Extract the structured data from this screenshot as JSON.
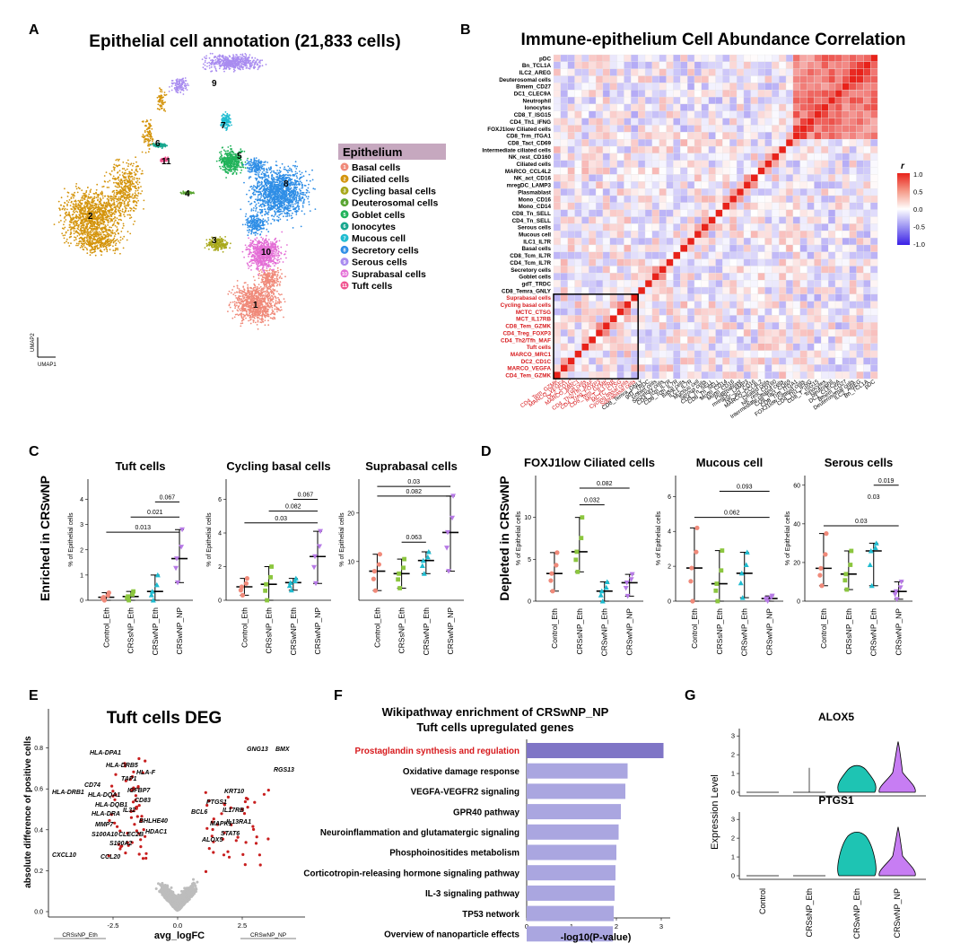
{
  "panels": {
    "A": "A",
    "B": "B",
    "C": "C",
    "D": "D",
    "E": "E",
    "F": "F",
    "G": "G"
  },
  "panel_a": {
    "title": "Epithelial cell annotation (21,833 cells)",
    "axis_x": "UMAP1",
    "axis_y": "UMAP2",
    "legend_title": "Epithelium",
    "clusters": [
      {
        "id": "1",
        "name": "Basal cells",
        "color": "#f08a7a"
      },
      {
        "id": "2",
        "name": "Ciliated cells",
        "color": "#d4940c"
      },
      {
        "id": "3",
        "name": "Cycling basal cells",
        "color": "#a8a81a"
      },
      {
        "id": "4",
        "name": "Deuterosomal cells",
        "color": "#5aa532"
      },
      {
        "id": "5",
        "name": "Goblet cells",
        "color": "#21b35a"
      },
      {
        "id": "6",
        "name": "Ionocytes",
        "color": "#18a78f"
      },
      {
        "id": "7",
        "name": "Mucous cell",
        "color": "#1fbcd0"
      },
      {
        "id": "8",
        "name": "Secretory cells",
        "color": "#2f8ee6"
      },
      {
        "id": "9",
        "name": "Serous cells",
        "color": "#a98cf0"
      },
      {
        "id": "10",
        "name": "Suprabasal cells",
        "color": "#e46fd6"
      },
      {
        "id": "11",
        "name": "Tuft cells",
        "color": "#f0528f"
      }
    ]
  },
  "panel_b": {
    "title": "Immune-epithelium Cell Abundance Correlation",
    "legend_title": "r",
    "legend_ticks": [
      "1.0",
      "0.5",
      "0.0",
      "-0.5",
      "-1.0"
    ],
    "highlight_color": "#d7191c",
    "labels": [
      "pDC",
      "Bn_TCL1A",
      "ILC2_AREG",
      "Deuterosomal cells",
      "Bmem_CD27",
      "DC1_CLEC9A",
      "Neutrophil",
      "Ionocytes",
      "CD8_T_ISG15",
      "CD4_Th1_IFNG",
      "FOXJ1low Ciliated cells",
      "CD8_Trm_ITGA1",
      "CD8_Tact_CD69",
      "Intermediate ciliated cells",
      "NK_rest_CD160",
      "Ciliated cells",
      "MARCO_CCL4L2",
      "NK_act_CD16",
      "mregDC_LAMP3",
      "Plasmablast",
      "Mono_CD16",
      "Mono_CD14",
      "CD8_Tn_SELL",
      "CD4_Tn_SELL",
      "Serous cells",
      "Mucous cell",
      "ILC1_IL7R",
      "Basal cells",
      "CD8_Tcm_IL7R",
      "CD4_Tcm_IL7R",
      "Secretory cells",
      "Goblet cells",
      "gdT_TRDC",
      "CD8_Temra_GNLY",
      "Suprabasal cells",
      "Cycling basal cells",
      "MCTC_CTSG",
      "MCT_IL17RB",
      "CD8_Tem_GZMK",
      "CD4_Treg_FOXP3",
      "CD4_Th2/Tfh_MAF",
      "Tuft cells",
      "MARCO_MRC1",
      "DC2_CD1C",
      "MARCO_VEGFA",
      "CD4_Tem_GZMK"
    ]
  },
  "panel_c": {
    "ylabel": "Enriched in CRSwNP",
    "plots": [
      {
        "title": "Tuft cells",
        "yticks": [
          "0",
          "1",
          "2",
          "3",
          "4"
        ],
        "ymax": 4.8,
        "values": [
          0.12,
          0.15,
          0.35,
          1.65
        ],
        "ranges": [
          [
            0.0,
            0.3
          ],
          [
            0.0,
            0.35
          ],
          [
            0.0,
            1.0
          ],
          [
            0.7,
            2.8
          ]
        ],
        "pvals": [
          {
            "from": 0,
            "to": 3,
            "label": "0.013",
            "y": 2.7
          },
          {
            "from": 1,
            "to": 3,
            "label": "0.021",
            "y": 3.3
          },
          {
            "from": 2,
            "to": 3,
            "label": "0.067",
            "y": 3.9
          }
        ]
      },
      {
        "title": "Cycling basal cells",
        "yticks": [
          "0",
          "2",
          "4",
          "6"
        ],
        "ymax": 7.2,
        "values": [
          0.8,
          0.95,
          1.05,
          2.6
        ],
        "ranges": [
          [
            0.3,
            1.3
          ],
          [
            0.0,
            2.0
          ],
          [
            0.6,
            1.3
          ],
          [
            1.0,
            4.1
          ]
        ],
        "pvals": [
          {
            "from": 0,
            "to": 3,
            "label": "0.03",
            "y": 4.6
          },
          {
            "from": 1,
            "to": 3,
            "label": "0.082",
            "y": 5.3
          },
          {
            "from": 2,
            "to": 3,
            "label": "0.067",
            "y": 6.0
          }
        ]
      },
      {
        "title": "Suprabasal cells",
        "yticks": [
          "10",
          "20"
        ],
        "ymin": 2,
        "ymax": 27,
        "values": [
          8.0,
          7.5,
          10.2,
          16.0
        ],
        "ranges": [
          [
            4.0,
            11.5
          ],
          [
            4.5,
            10.5
          ],
          [
            7.5,
            12.0
          ],
          [
            8.0,
            23.5
          ]
        ],
        "pvals": [
          {
            "from": 1,
            "to": 2,
            "label": "0.063",
            "y": 14.0
          },
          {
            "from": 0,
            "to": 3,
            "label": "0.082",
            "y": 23.5
          },
          {
            "from": 0,
            "to": 3,
            "label": "0.03",
            "y": 25.5
          }
        ]
      }
    ],
    "groups": [
      "Control_Eth",
      "CRSsNP_Eth",
      "CRSwNP_Eth",
      "CRSwNP_NP"
    ],
    "group_colors": [
      "#f08a7a",
      "#8cc63f",
      "#1fbcd0",
      "#b77ae6"
    ],
    "yaxis_label": "% of Epithelial cells"
  },
  "panel_d": {
    "ylabel": "Depleted in CRSwNP",
    "plots": [
      {
        "title": "FOXJ1low Ciliated cells",
        "yticks": [
          "0",
          "5",
          "10"
        ],
        "ymax": 15,
        "values": [
          3.3,
          5.9,
          1.2,
          2.2
        ],
        "ranges": [
          [
            1.2,
            5.8
          ],
          [
            3.5,
            10.0
          ],
          [
            0.0,
            2.3
          ],
          [
            0.6,
            3.2
          ]
        ],
        "pvals": [
          {
            "from": 1,
            "to": 2,
            "label": "0.032",
            "y": 11.5
          },
          {
            "from": 1,
            "to": 3,
            "label": "0.082",
            "y": 13.5
          }
        ]
      },
      {
        "title": "Mucous cell",
        "yticks": [
          "0",
          "2",
          "4",
          "6"
        ],
        "ymax": 7.2,
        "values": [
          1.9,
          1.0,
          1.6,
          0.15
        ],
        "ranges": [
          [
            0.0,
            4.2
          ],
          [
            0.0,
            2.9
          ],
          [
            0.2,
            2.8
          ],
          [
            0.0,
            0.3
          ]
        ],
        "pvals": [
          {
            "from": 0,
            "to": 3,
            "label": "0.062",
            "y": 4.8
          },
          {
            "from": 1,
            "to": 3,
            "label": "0.093",
            "y": 6.3
          }
        ]
      },
      {
        "title": "Serous cells",
        "yticks": [
          "0",
          "20",
          "40",
          "60"
        ],
        "ymax": 65,
        "values": [
          17,
          14,
          26,
          5
        ],
        "ranges": [
          [
            8,
            35
          ],
          [
            6,
            26
          ],
          [
            8,
            30
          ],
          [
            1,
            10
          ]
        ],
        "pvals": [
          {
            "from": 0,
            "to": 3,
            "label": "0.03",
            "y": 39
          },
          {
            "from": 2,
            "to": 3,
            "label": "0.019",
            "y": 60
          }
        ],
        "extra_label": {
          "label": "0.03",
          "group": 2,
          "y": 53
        }
      }
    ]
  },
  "panel_e": {
    "title": "Tuft cells DEG",
    "xlabel": "avg_logFC",
    "ylabel": "absolute difference of positive cells",
    "xticks": [
      "-2.5",
      "0.0",
      "2.5"
    ],
    "yticks": [
      "0.0",
      "0.2",
      "0.4",
      "0.6",
      "0.8"
    ],
    "left_tag": "CRSsNP_Eth",
    "right_tag": "CRSwNP_NP",
    "genes_left": [
      "HLA-DPA1",
      "HLA-DRB5",
      "HLA-F",
      "TAP1",
      "CD74",
      "HLA-DRB1",
      "HLA-DQA1",
      "IGFBP7",
      "HLA-DQB1",
      "CD83",
      "HLA-DRA",
      "IL32",
      "BHLHE40",
      "MMP7",
      "S100A10",
      "CLEC2B",
      "HDAC1",
      "S100A2",
      "CCL20",
      "CXCL10"
    ],
    "genes_right": [
      "GNG13",
      "BMX",
      "RGS13",
      "KRT10",
      "PTGS1",
      "IL17RB",
      "BCL6",
      "MAPK1",
      "IL13RA1",
      "STAT6",
      "ALOX5"
    ]
  },
  "panel_f": {
    "title_line1": "Wikipathway enrichment of CRSwNP_NP",
    "title_line2": "Tuft cells upregulated genes",
    "xlabel": "-log10(P-value)",
    "xticks": [
      "0",
      "1",
      "2",
      "3"
    ],
    "highlight_color": "#d7191c",
    "pathways": [
      {
        "name": "Prostaglandin synthesis and regulation",
        "value": 3.05
      },
      {
        "name": "Oxidative damage response",
        "value": 2.25
      },
      {
        "name": "VEGFA-VEGFR2 signaling",
        "value": 2.2
      },
      {
        "name": "GPR40 pathway",
        "value": 2.1
      },
      {
        "name": "Neuroinflammation and glutamatergic signaling",
        "value": 2.05
      },
      {
        "name": "Phosphoinositides metabolism",
        "value": 2.0
      },
      {
        "name": "Corticotropin-releasing hormone signaling pathway",
        "value": 1.98
      },
      {
        "name": "IL-3 signaling pathway",
        "value": 1.96
      },
      {
        "name": "TP53 network",
        "value": 1.94
      },
      {
        "name": "Overview of nanoparticle effects",
        "value": 1.92
      }
    ]
  },
  "panel_g": {
    "ylabel": "Expression Level",
    "groups": [
      "Control",
      "CRSsNP_Eth",
      "CRSwNP_Eth",
      "CRSwNP_NP"
    ],
    "genes": [
      {
        "name": "ALOX5",
        "yticks": [
          "0",
          "1",
          "2",
          "3"
        ]
      },
      {
        "name": "PTGS1",
        "yticks": [
          "0",
          "1",
          "2",
          "3"
        ]
      }
    ],
    "violin_colors": [
      "#1ec4b3",
      "#c77df3"
    ]
  }
}
